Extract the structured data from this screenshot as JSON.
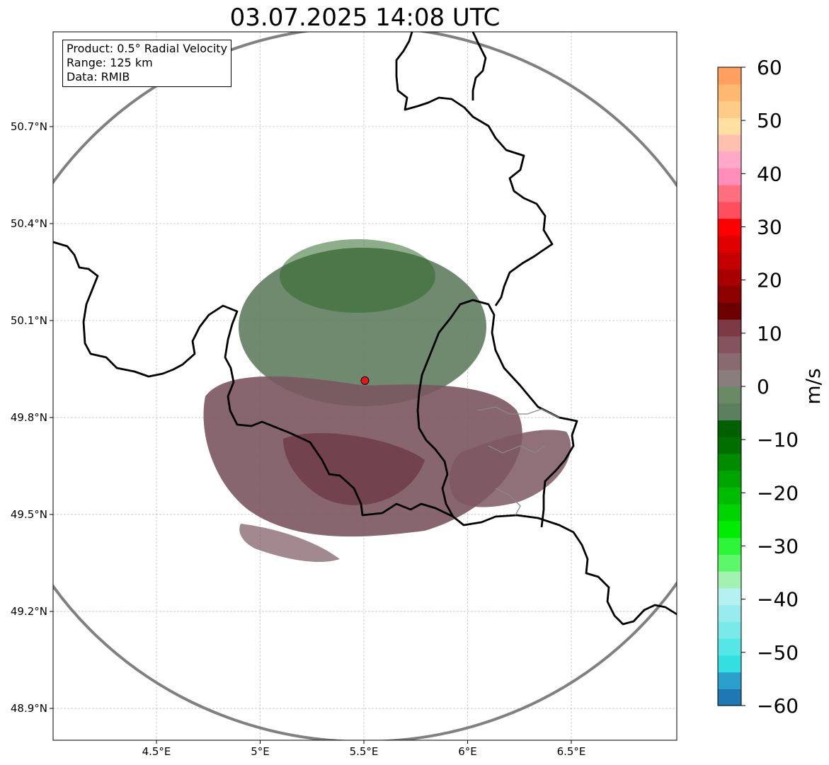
{
  "title": "03.07.2025 14:08 UTC",
  "info": {
    "product": "Product: 0.5° Radial Velocity",
    "range": "Range: 125 km",
    "data": "Data: RMIB"
  },
  "map": {
    "lon_range": [
      4.0,
      7.0
    ],
    "lat_range": [
      48.8,
      51.0
    ],
    "lon_ticks": [
      {
        "value": 4.5,
        "label": "4.5°E"
      },
      {
        "value": 5.0,
        "label": "5°E"
      },
      {
        "value": 5.5,
        "label": "5.5°E"
      },
      {
        "value": 6.0,
        "label": "6°E"
      },
      {
        "value": 6.5,
        "label": "6.5°E"
      }
    ],
    "lat_ticks": [
      {
        "value": 50.7,
        "label": "50.7°N"
      },
      {
        "value": 50.4,
        "label": "50.4°N"
      },
      {
        "value": 50.1,
        "label": "50.1°N"
      },
      {
        "value": 49.8,
        "label": "49.8°N"
      },
      {
        "value": 49.5,
        "label": "49.5°N"
      },
      {
        "value": 49.2,
        "label": "49.2°N"
      },
      {
        "value": 48.9,
        "label": "48.9°N"
      }
    ],
    "radar_site": {
      "lon": 5.505,
      "lat": 49.914
    },
    "grid": true
  },
  "colorbar": {
    "label": "m/s",
    "min": -60,
    "max": 60,
    "ticks": [
      {
        "value": 60,
        "label": "60"
      },
      {
        "value": 50,
        "label": "50"
      },
      {
        "value": 40,
        "label": "40"
      },
      {
        "value": 30,
        "label": "30"
      },
      {
        "value": 20,
        "label": "20"
      },
      {
        "value": 10,
        "label": "10"
      },
      {
        "value": 0,
        "label": "0"
      },
      {
        "value": -10,
        "label": "−10"
      },
      {
        "value": -20,
        "label": "−20"
      },
      {
        "value": -30,
        "label": "−30"
      },
      {
        "value": -40,
        "label": "−40"
      },
      {
        "value": -50,
        "label": "−50"
      },
      {
        "value": -60,
        "label": "−60"
      }
    ],
    "colors": [
      "#1f77b4",
      "#2b9fce",
      "#33dfe0",
      "#55e6e6",
      "#7ae9ea",
      "#99ecee",
      "#b5f1f3",
      "#a4f2b2",
      "#5cf76a",
      "#2cf53a",
      "#00ec00",
      "#00d400",
      "#00bc00",
      "#00a400",
      "#008b00",
      "#006f00",
      "#006000",
      "#5c7f5f",
      "#6a8a66",
      "#8a7d7d",
      "#8a6a72",
      "#83545e",
      "#7b3a44",
      "#6a0000",
      "#8c0000",
      "#a80000",
      "#c40000",
      "#e00000",
      "#ff0000",
      "#ff4f5f",
      "#ff6f80",
      "#ff8fba",
      "#ffa8c8",
      "#ffc0b0",
      "#ffe0a0",
      "#ffcc88",
      "#ffb870",
      "#ffa060"
    ]
  }
}
